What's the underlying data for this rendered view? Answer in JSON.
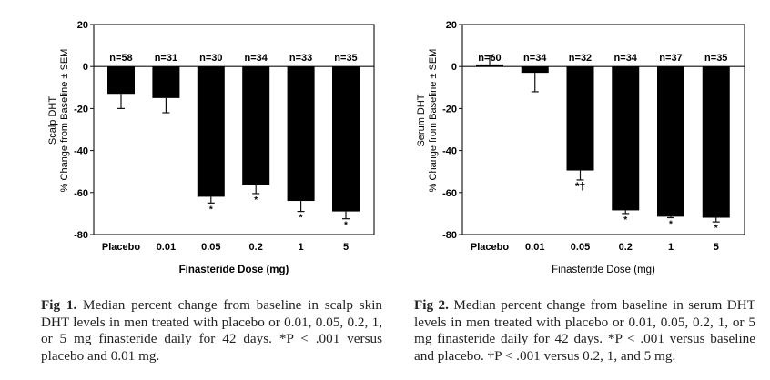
{
  "chart_data": [
    {
      "type": "bar",
      "categories": [
        "Placebo",
        "0.01",
        "0.05",
        "0.2",
        "1",
        "5"
      ],
      "values": [
        -13,
        -15,
        -62,
        -56.5,
        -64,
        -69
      ],
      "error_to": [
        -20,
        -22,
        -65,
        -60.5,
        -69,
        -72.5
      ],
      "n_labels": [
        "n=58",
        "n=31",
        "n=30",
        "n=34",
        "n=33",
        "n=35"
      ],
      "markers": [
        "",
        "",
        "*",
        "*",
        "*",
        "*"
      ],
      "ylabel_line1": "Scalp DHT",
      "ylabel_line2": "% Change from Baseline ± SEM",
      "xlabel": "Finasteride Dose (mg)",
      "ylim": [
        -80,
        20
      ],
      "yticks": [
        "20",
        "0",
        "-20",
        "-40",
        "-60",
        "-80"
      ],
      "bar_color": "#000000",
      "grid": false
    },
    {
      "type": "bar",
      "categories": [
        "Placebo",
        "0.01",
        "0.05",
        "0.2",
        "1",
        "5"
      ],
      "values": [
        1,
        -3,
        -49.5,
        -68.5,
        -71.5,
        -72
      ],
      "error_to": [
        5,
        -12,
        -54,
        -70,
        -72,
        -74
      ],
      "n_labels": [
        "n=60",
        "n=34",
        "n=32",
        "n=34",
        "n=37",
        "n=35"
      ],
      "markers": [
        "",
        "",
        "*†",
        "*",
        "*",
        "*"
      ],
      "ylabel_line1": "Serum DHT",
      "ylabel_line2": "% Change from Baseline ± SEM",
      "xlabel": "Finasteride Dose (mg)",
      "ylim": [
        -80,
        20
      ],
      "yticks": [
        "20",
        "0",
        "-20",
        "-40",
        "-60",
        "-80"
      ],
      "bar_color": "#000000",
      "grid": false
    }
  ],
  "captions": [
    {
      "label": "Fig 1.",
      "text": " Median percent change from baseline in scalp skin DHT levels in men treated with placebo or 0.01, 0.05, 0.2, 1, or 5 mg finasteride daily for 42 days. *P < .001 versus placebo and 0.01 mg."
    },
    {
      "label": "Fig 2.",
      "text": " Median percent change from baseline in serum DHT levels in men treated with placebo or 0.01, 0.05, 0.2, 1, or 5 mg finasteride daily for 42 days. *P < .001 versus baseline and placebo. †P < .001 versus 0.2, 1, and 5 mg."
    }
  ]
}
